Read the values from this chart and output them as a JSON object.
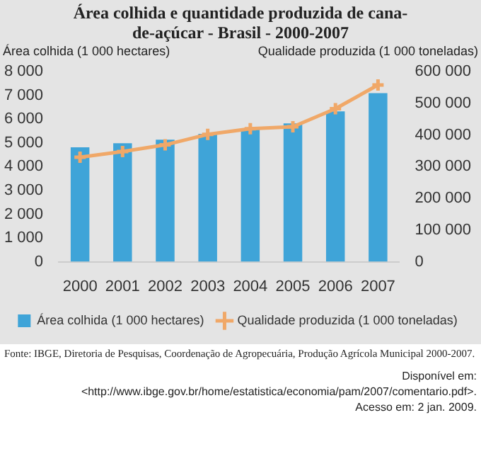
{
  "chart_data": {
    "type": "bar",
    "title": "Área colhida e quantidade produzida de cana-de-açúcar - Brasil - 2000-2007",
    "ylabel": "Área colhida (1 000 hectares)",
    "y2label": "Qualidade produzida (1 000 toneladas)",
    "categories": [
      "2000",
      "2001",
      "2002",
      "2003",
      "2004",
      "2005",
      "2006",
      "2007"
    ],
    "series": [
      {
        "name": "Área colhida (1 000 hectares)",
        "color": "#3fa4d8",
        "values": [
          4820,
          4990,
          5140,
          5380,
          5620,
          5820,
          6330,
          7100
        ]
      },
      {
        "name": "Qualidade produzida (1 000 toneladas)",
        "type": "line",
        "axis": "y2",
        "color": "#f0a868",
        "values": [
          330000,
          348000,
          369000,
          402000,
          420000,
          426000,
          483000,
          558000
        ]
      }
    ],
    "ylim": [
      0,
      8000
    ],
    "yticks": [
      0,
      {
        "value": 1000,
        "label": "1 000"
      },
      {
        "value": 2000,
        "label": "2 000"
      },
      {
        "value": 3000,
        "label": "3 000"
      },
      {
        "value": 4000,
        "label": "4 000"
      },
      {
        "value": 5000,
        "label": "5 000"
      },
      {
        "value": 6000,
        "label": "6 000"
      },
      {
        "value": 7000,
        "label": "7 000"
      },
      {
        "value": 8000,
        "label": "8 000"
      }
    ],
    "y2lim": [
      0,
      600000
    ],
    "y2ticks": [
      0,
      {
        "value": 100000,
        "label": "100 000"
      },
      {
        "value": 200000,
        "label": "200 000"
      },
      {
        "value": 300000,
        "label": "300 000"
      },
      {
        "value": 400000,
        "label": "400 000"
      },
      {
        "value": 500000,
        "label": "500 000"
      },
      {
        "value": 600000,
        "label": "600 000"
      }
    ],
    "marker": "cross",
    "legend": "bottom",
    "grid": false,
    "annotations": [
      "Fonte: IBGE, Diretoria de Pesquisas, Coordenação de Agropecuária, Produção Agrícola Municipal 2000-2007.",
      "Disponível em:",
      "<http://www.ibge.gov.br/home/estatistica/economia/pam/2007/comentario.pdf>.",
      "Acesso em: 2 jan. 2009."
    ]
  }
}
